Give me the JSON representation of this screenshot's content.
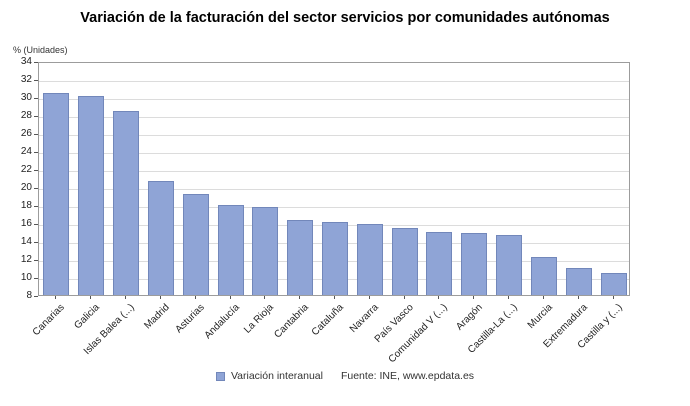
{
  "title": "Variación de la facturación del sector servicios por comunidades autónomas",
  "y_unit_label": "% (Unidades)",
  "legend": {
    "label": "Variación interanual"
  },
  "source": "Fuente: INE, www.epdata.es",
  "colors": {
    "bar_fill": "#8fa4d6",
    "bar_border": "#7287ba",
    "grid": "#dcdcdc",
    "plot_border": "#9c9c9c"
  },
  "chart_data": {
    "type": "bar",
    "categories": [
      "Canarias",
      "Galicia",
      "Islas Balea (...)",
      "Madrid",
      "Asturias",
      "Andalucía",
      "La Rioja",
      "Cantabria",
      "Cataluña",
      "Navarra",
      "País Vasco",
      "Comunidad V (...)",
      "Aragón",
      "Castilla-La (...)",
      "Murcia",
      "Extremadura",
      "Castilla y (...)"
    ],
    "values": [
      30.5,
      30.1,
      28.4,
      20.7,
      19.2,
      18.0,
      17.8,
      16.3,
      16.1,
      15.9,
      15.4,
      15.0,
      14.9,
      14.7,
      12.2,
      11.0,
      10.4
    ],
    "title": "Variación de la facturación del sector servicios por comunidades autónomas",
    "xlabel": "",
    "ylabel": "% (Unidades)",
    "ylim": [
      8,
      34
    ],
    "ytick_step": 2,
    "grid": true,
    "legend_entries": [
      "Variación interanual"
    ],
    "legend_position": "bottom",
    "source": "Fuente: INE, www.epdata.es"
  }
}
